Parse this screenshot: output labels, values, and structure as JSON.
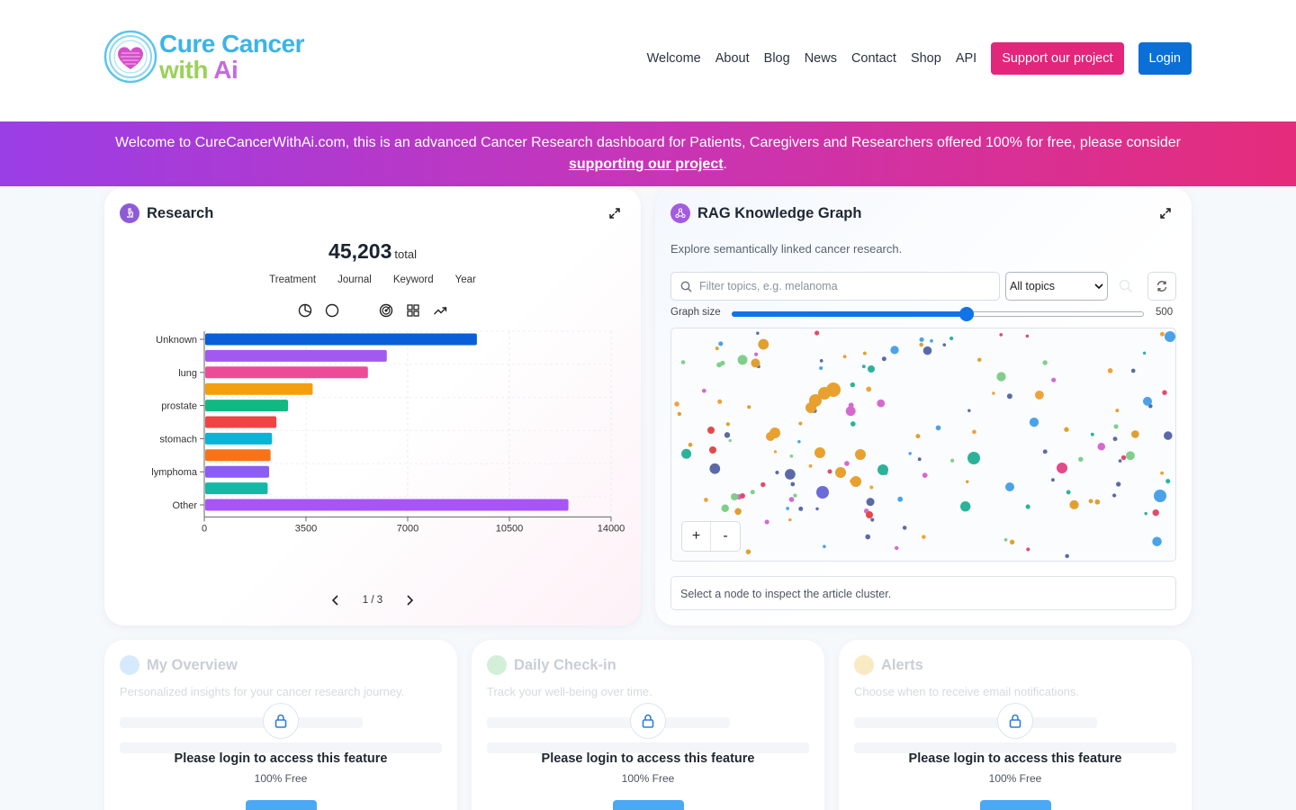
{
  "header": {
    "logo": {
      "line1": "Cure Cancer",
      "line2_with": "with ",
      "line2_ai": "Ai"
    },
    "nav": [
      "Welcome",
      "About",
      "Blog",
      "News",
      "Contact",
      "Shop",
      "API"
    ],
    "support_label": "Support our project",
    "login_label": "Login"
  },
  "banner": {
    "text_before": "Welcome to CureCancerWithAi.com, this is an advanced Cancer Research dashboard for Patients, Caregivers and Researchers offered 100% for free, please consider ",
    "link_text": "supporting our project",
    "text_after": "."
  },
  "research": {
    "title": "Research",
    "total_value": "45,203",
    "total_label": "total",
    "tabs": [
      "Treatment",
      "Journal",
      "Keyword",
      "Year"
    ],
    "icons": [
      "pie-chart-icon",
      "donut-chart-icon",
      "radar-chart-icon",
      "grid-icon",
      "trend-icon"
    ],
    "pager": "1 / 3"
  },
  "chart_data": {
    "type": "bar",
    "orientation": "horizontal",
    "categories": [
      "Unknown",
      "",
      "lung",
      "",
      "prostate",
      "",
      "stomach",
      "",
      "lymphoma",
      "",
      "Other"
    ],
    "values": [
      9350,
      6250,
      5600,
      3700,
      2850,
      2450,
      2300,
      2250,
      2200,
      2150,
      12500
    ],
    "colors": [
      "#0a5ed7",
      "#a259ef",
      "#ec4c97",
      "#f59e0b",
      "#10b981",
      "#ef4444",
      "#06b6d4",
      "#f97316",
      "#8b5cf6",
      "#14b8a6",
      "#a855f7"
    ],
    "xlim": [
      0,
      14000
    ],
    "xticks": [
      0,
      3500,
      7000,
      10500,
      14000
    ],
    "grid": true
  },
  "rag": {
    "title": "RAG Knowledge Graph",
    "description": "Explore semantically linked cancer research.",
    "search_placeholder": "Filter topics, e.g. melanoma",
    "select_value": "All topics",
    "graph_size_label": "Graph size",
    "graph_size_value": "500",
    "graph_size_fraction": 0.57,
    "zoom_in": "+",
    "zoom_out": "-",
    "node_info": "Select a node to inspect the article cluster."
  },
  "locked": [
    {
      "title": "My Overview",
      "subtitle": "Personalized insights for your cancer research journey.",
      "message": "Please login to access this feature",
      "free": "100% Free",
      "icon_color": "#cfe6fb"
    },
    {
      "title": "Daily Check-in",
      "subtitle": "Track your well-being over time.",
      "message": "Please login to access this feature",
      "free": "100% Free",
      "icon_color": "#cdeed3"
    },
    {
      "title": "Alerts",
      "subtitle": "Choose when to receive email notifications.",
      "message": "Please login to access this feature",
      "free": "100% Free",
      "icon_color": "#f7e6b7"
    }
  ]
}
